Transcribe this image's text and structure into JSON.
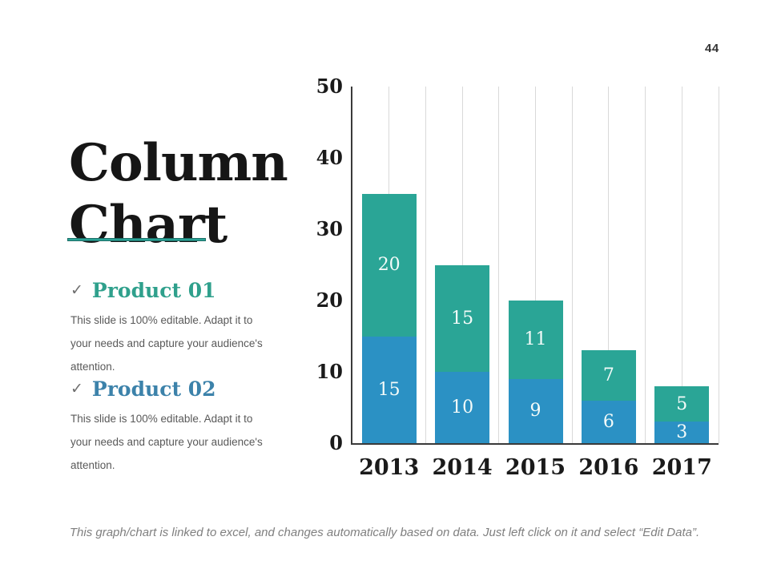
{
  "slide": {
    "page_number": "44",
    "title_line1": "Column",
    "title_line2": "Chart",
    "caption": "This graph/chart is linked to excel, and changes automatically based on data. Just left click on it and select “Edit Data”."
  },
  "bullets": [
    {
      "icon": "check-icon",
      "heading": "Product 01",
      "heading_color": "#2fa08c",
      "body": "This slide is 100% editable. Adapt it to your needs and capture your audience's attention."
    },
    {
      "icon": "check-icon",
      "heading": "Product 02",
      "heading_color": "#3c82aa",
      "body": "This slide is 100% editable. Adapt it to your needs and capture your audience's attention."
    }
  ],
  "chart_data": {
    "type": "bar",
    "stacked": true,
    "title": "",
    "xlabel": "",
    "ylabel": "",
    "categories": [
      "2013",
      "2014",
      "2015",
      "2016",
      "2017"
    ],
    "series": [
      {
        "name": "bottom (blue)",
        "color": "#2b91c4",
        "values": [
          15,
          10,
          9,
          6,
          3
        ]
      },
      {
        "name": "top (teal)",
        "color": "#2aa596",
        "values": [
          20,
          15,
          11,
          7,
          5
        ]
      }
    ],
    "totals": [
      35,
      25,
      20,
      13,
      8
    ],
    "ylim": [
      0,
      50
    ],
    "yticks": [
      0,
      10,
      20,
      30,
      40,
      50
    ],
    "data_labels": true,
    "data_label_color": "#f4fbf9",
    "grid": {
      "vertical": true,
      "lines_per_category": 2,
      "color": "#d9d9d9"
    },
    "axis_color": "#3a3a3a",
    "legend": "none"
  },
  "icons": {
    "check": "✓"
  }
}
